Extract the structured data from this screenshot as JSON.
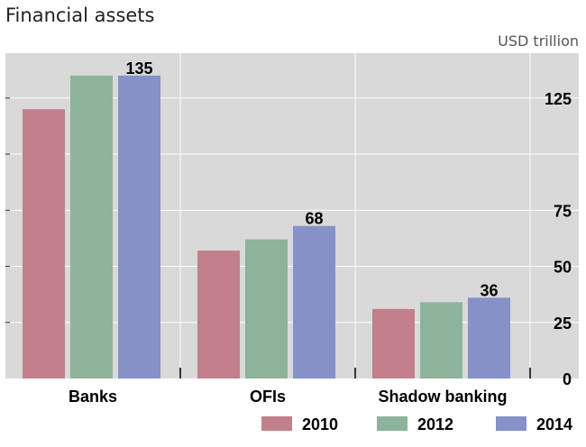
{
  "chart_data": {
    "type": "bar",
    "title": "Financial assets",
    "unit_label": "USD trillion",
    "categories": [
      "Banks",
      "OFIs",
      "Shadow banking"
    ],
    "series": [
      {
        "name": "2010",
        "color": "#c27f8c",
        "values": [
          120,
          57,
          31
        ]
      },
      {
        "name": "2012",
        "color": "#8db39a",
        "values": [
          135,
          62,
          34
        ]
      },
      {
        "name": "2014",
        "color": "#8591c7",
        "values": [
          135,
          68,
          36
        ]
      }
    ],
    "data_labels": [
      {
        "category_index": 0,
        "series_index": 2,
        "text": "135"
      },
      {
        "category_index": 1,
        "series_index": 2,
        "text": "68"
      },
      {
        "category_index": 2,
        "series_index": 2,
        "text": "36"
      }
    ],
    "ylim": [
      0,
      145
    ],
    "yticks": [
      0,
      25,
      50,
      75,
      100,
      125
    ],
    "ytick_labels": [
      "0",
      "25",
      "50",
      "75",
      "",
      "125"
    ],
    "y_axis_side": "right",
    "grid": true,
    "legend_position": "bottom-right",
    "plot_background": "#d9d9d9"
  }
}
